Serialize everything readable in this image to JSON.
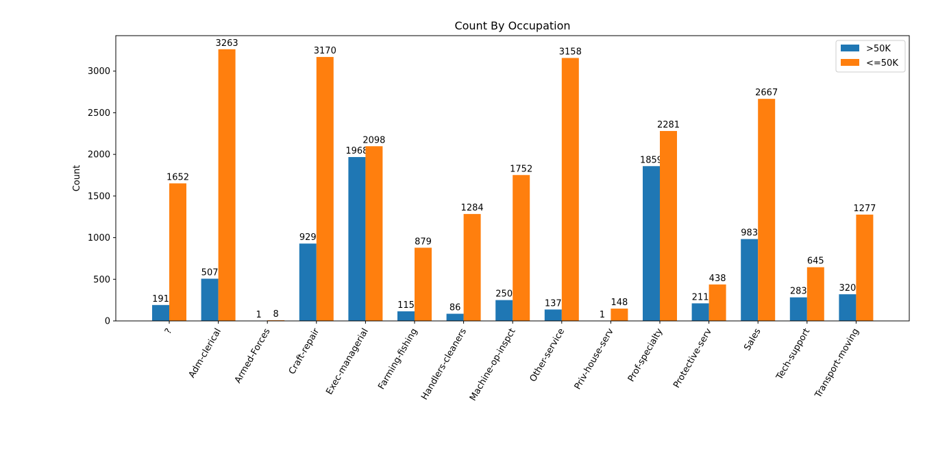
{
  "chart_data": {
    "type": "bar",
    "title": "Count By Occupation",
    "xlabel": "",
    "ylabel": "Count",
    "categories": [
      "?",
      "Adm-clerical",
      "Armed-Forces",
      "Craft-repair",
      "Exec-managerial",
      "Farming-fishing",
      "Handlers-cleaners",
      "Machine-op-inspct",
      "Other-service",
      "Priv-house-serv",
      "Prof-specialty",
      "Protective-serv",
      "Sales",
      "Tech-support",
      "Transport-moving"
    ],
    "series": [
      {
        "name": ">50K",
        "color": "#1f77b4",
        "values": [
          191,
          507,
          1,
          929,
          1968,
          115,
          86,
          250,
          137,
          1,
          1859,
          211,
          983,
          283,
          320
        ]
      },
      {
        "name": "<=50K",
        "color": "#ff7f0e",
        "values": [
          1652,
          3263,
          8,
          3170,
          2098,
          879,
          1284,
          1752,
          3158,
          148,
          2281,
          438,
          2667,
          645,
          1277
        ]
      }
    ],
    "ylim": [
      0,
      3426
    ],
    "yticks": [
      0,
      500,
      1000,
      1500,
      2000,
      2500,
      3000
    ],
    "xtick_rotation": -60,
    "grid": false,
    "legend_position": "top-right"
  }
}
